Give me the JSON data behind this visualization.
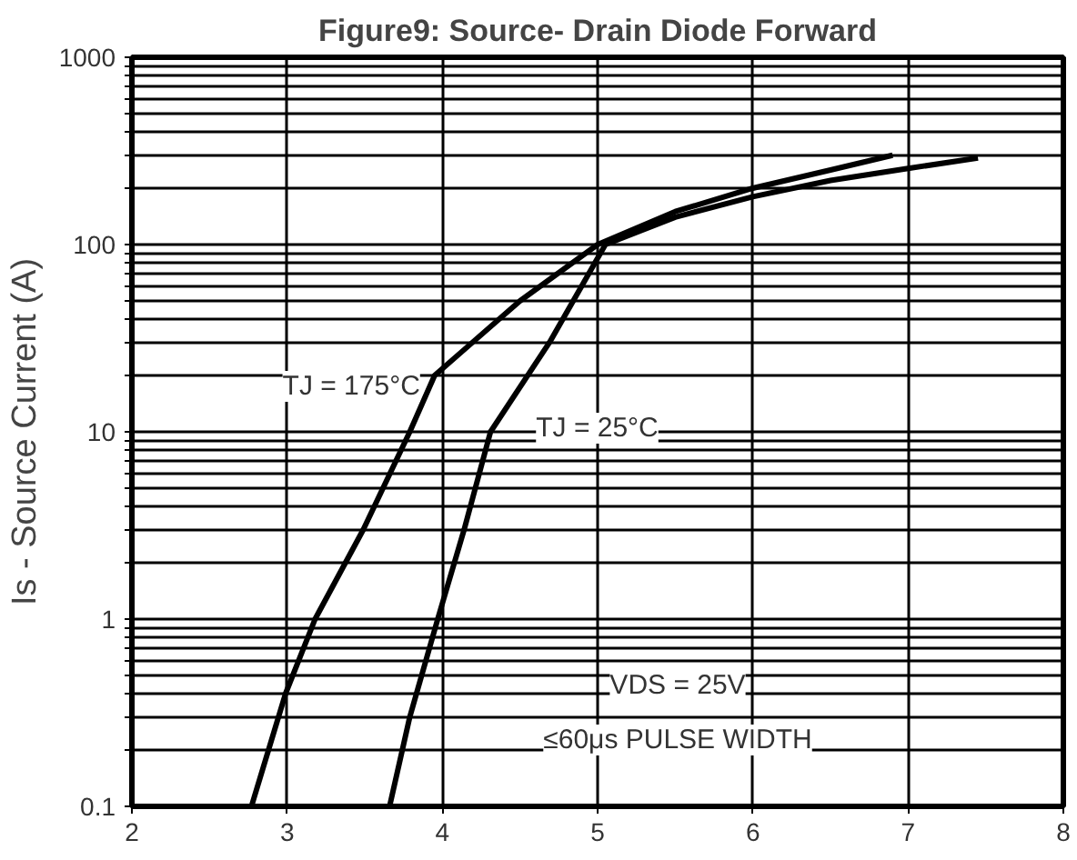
{
  "chart_data": {
    "type": "line",
    "title": "Figure9: Source- Drain Diode Forward",
    "ylabel": "Is - Source Current (A)",
    "log": "y",
    "grid": true,
    "line_style": "solid",
    "marker": "none",
    "xlim": [
      2,
      8
    ],
    "xticks": [
      2,
      3,
      4,
      5,
      6,
      7,
      8
    ],
    "ylim": [
      0.1,
      1000
    ],
    "yticks": [
      0.1,
      {
        "value": 0.2,
        "label": null
      },
      {
        "value": 0.3,
        "label": null
      },
      {
        "value": 0.4,
        "label": null
      },
      {
        "value": 0.5,
        "label": null
      },
      {
        "value": 0.6,
        "label": null
      },
      {
        "value": 0.7,
        "label": null
      },
      {
        "value": 0.8,
        "label": null
      },
      {
        "value": 0.9,
        "label": null
      },
      1,
      {
        "value": 2,
        "label": null
      },
      {
        "value": 3,
        "label": null
      },
      {
        "value": 4,
        "label": null
      },
      {
        "value": 5,
        "label": null
      },
      {
        "value": 6,
        "label": null
      },
      {
        "value": 7,
        "label": null
      },
      {
        "value": 8,
        "label": null
      },
      {
        "value": 9,
        "label": null
      },
      10,
      {
        "value": 20,
        "label": null
      },
      {
        "value": 30,
        "label": null
      },
      {
        "value": 40,
        "label": null
      },
      {
        "value": 50,
        "label": null
      },
      {
        "value": 60,
        "label": null
      },
      {
        "value": 70,
        "label": null
      },
      {
        "value": 80,
        "label": null
      },
      {
        "value": 90,
        "label": null
      },
      100,
      {
        "value": 200,
        "label": null
      },
      {
        "value": 300,
        "label": null
      },
      {
        "value": 400,
        "label": null
      },
      {
        "value": 500,
        "label": null
      },
      {
        "value": 600,
        "label": null
      },
      {
        "value": 700,
        "label": null
      },
      {
        "value": 800,
        "label": null
      },
      {
        "value": 900,
        "label": null
      },
      1000
    ],
    "series": [
      {
        "name": "TJ = 175°C",
        "color": "#000000",
        "x": [
          2.77,
          2.99,
          3.18,
          3.49,
          3.79,
          3.95,
          4.5,
          5.0,
          5.5,
          6.0,
          6.5,
          6.9
        ],
        "values": [
          0.1,
          0.4,
          1,
          3,
          10,
          20,
          50,
          100,
          150,
          200,
          250,
          300
        ]
      },
      {
        "name": "TJ = 25°C",
        "color": "#000000",
        "x": [
          3.66,
          3.79,
          3.97,
          4.14,
          4.31,
          4.69,
          5.05,
          5.5,
          6.0,
          6.5,
          7.0,
          7.45
        ],
        "values": [
          0.1,
          0.3,
          1,
          3,
          10,
          30,
          100,
          140,
          180,
          220,
          255,
          290
        ]
      }
    ],
    "annotations": [
      "VDS = 25V",
      "≤60μs PULSE WIDTH"
    ]
  }
}
